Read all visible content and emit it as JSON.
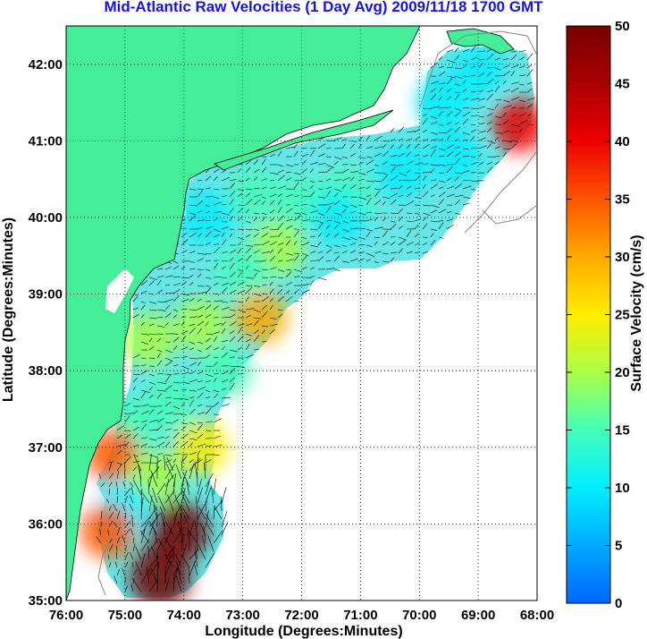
{
  "title": "Mid-Atlantic Raw Velocities (1 Day Avg) 2009/11/18 1700 GMT",
  "x_axis": {
    "label": "Longitude (Degrees:Minutes)",
    "range": [
      -76,
      -68
    ],
    "ticks": [
      {
        "value": -76,
        "label": "76:00"
      },
      {
        "value": -75,
        "label": "75:00"
      },
      {
        "value": -74,
        "label": "74:00"
      },
      {
        "value": -73,
        "label": "73:00"
      },
      {
        "value": -72,
        "label": "72:00"
      },
      {
        "value": -71,
        "label": "71:00"
      },
      {
        "value": -70,
        "label": "70:00"
      },
      {
        "value": -69,
        "label": "69:00"
      },
      {
        "value": -68,
        "label": "68:00"
      }
    ]
  },
  "y_axis": {
    "label": "Latitude (Degrees:Minutes)",
    "range": [
      35,
      42.5
    ],
    "ticks": [
      {
        "value": 35,
        "label": "35:00"
      },
      {
        "value": 36,
        "label": "36:00"
      },
      {
        "value": 37,
        "label": "37:00"
      },
      {
        "value": 38,
        "label": "38:00"
      },
      {
        "value": 39,
        "label": "39:00"
      },
      {
        "value": 40,
        "label": "40:00"
      },
      {
        "value": 41,
        "label": "41:00"
      },
      {
        "value": 42,
        "label": "42:00"
      }
    ]
  },
  "colorbar": {
    "label": "Surface Velocity (cm/s)",
    "range": [
      0,
      50
    ],
    "ticks": [
      "0",
      "5",
      "10",
      "15",
      "20",
      "25",
      "30",
      "35",
      "40",
      "45",
      "50"
    ],
    "colors": [
      "#0066ff",
      "#00aaff",
      "#00eeff",
      "#44ffbb",
      "#aaff44",
      "#ffee00",
      "#ffaa00",
      "#ff5500",
      "#ee0000",
      "#aa0000",
      "#770000"
    ]
  },
  "colors": {
    "land": "#44ee99",
    "ocean_background": "#ffffff",
    "grid": "#000000",
    "title": "#1414e6",
    "arrows": "#000000"
  },
  "chart_data": {
    "type": "heatmap",
    "title": "Mid-Atlantic Raw Velocities (1 Day Avg) 2009/11/18 1700 GMT",
    "xlabel": "Longitude (Degrees:Minutes)",
    "ylabel": "Latitude (Degrees:Minutes)",
    "xlim": [
      -76,
      -68
    ],
    "ylim": [
      35,
      42.5
    ],
    "grid": true,
    "colorbar_label": "Surface Velocity (cm/s)",
    "colorbar_range": [
      0,
      50
    ],
    "speed_regions": [
      {
        "lon": -69.6,
        "lat": 41.5,
        "speed": 8
      },
      {
        "lon": -69.0,
        "lat": 41.9,
        "speed": 12
      },
      {
        "lon": -68.3,
        "lat": 41.2,
        "speed": 40
      },
      {
        "lon": -69.4,
        "lat": 40.8,
        "speed": 9
      },
      {
        "lon": -70.3,
        "lat": 40.6,
        "speed": 12
      },
      {
        "lon": -71.2,
        "lat": 40.3,
        "speed": 14
      },
      {
        "lon": -72.0,
        "lat": 40.2,
        "speed": 17
      },
      {
        "lon": -72.8,
        "lat": 40.3,
        "speed": 15
      },
      {
        "lon": -73.6,
        "lat": 40.0,
        "speed": 11
      },
      {
        "lon": -72.4,
        "lat": 39.6,
        "speed": 20
      },
      {
        "lon": -71.4,
        "lat": 40.0,
        "speed": 8
      },
      {
        "lon": -73.0,
        "lat": 39.3,
        "speed": 16
      },
      {
        "lon": -72.7,
        "lat": 38.7,
        "speed": 28
      },
      {
        "lon": -73.7,
        "lat": 38.6,
        "speed": 19
      },
      {
        "lon": -74.6,
        "lat": 38.4,
        "speed": 18
      },
      {
        "lon": -73.3,
        "lat": 38.0,
        "speed": 17
      },
      {
        "lon": -74.2,
        "lat": 37.6,
        "speed": 15
      },
      {
        "lon": -73.7,
        "lat": 37.0,
        "speed": 24
      },
      {
        "lon": -74.8,
        "lat": 37.3,
        "speed": 17
      },
      {
        "lon": -75.2,
        "lat": 36.9,
        "speed": 36
      },
      {
        "lon": -74.5,
        "lat": 36.6,
        "speed": 18
      },
      {
        "lon": -75.0,
        "lat": 36.2,
        "speed": 12
      },
      {
        "lon": -74.1,
        "lat": 35.9,
        "speed": 48
      },
      {
        "lon": -74.4,
        "lat": 35.3,
        "speed": 48
      },
      {
        "lon": -75.3,
        "lat": 35.9,
        "speed": 34
      }
    ]
  }
}
